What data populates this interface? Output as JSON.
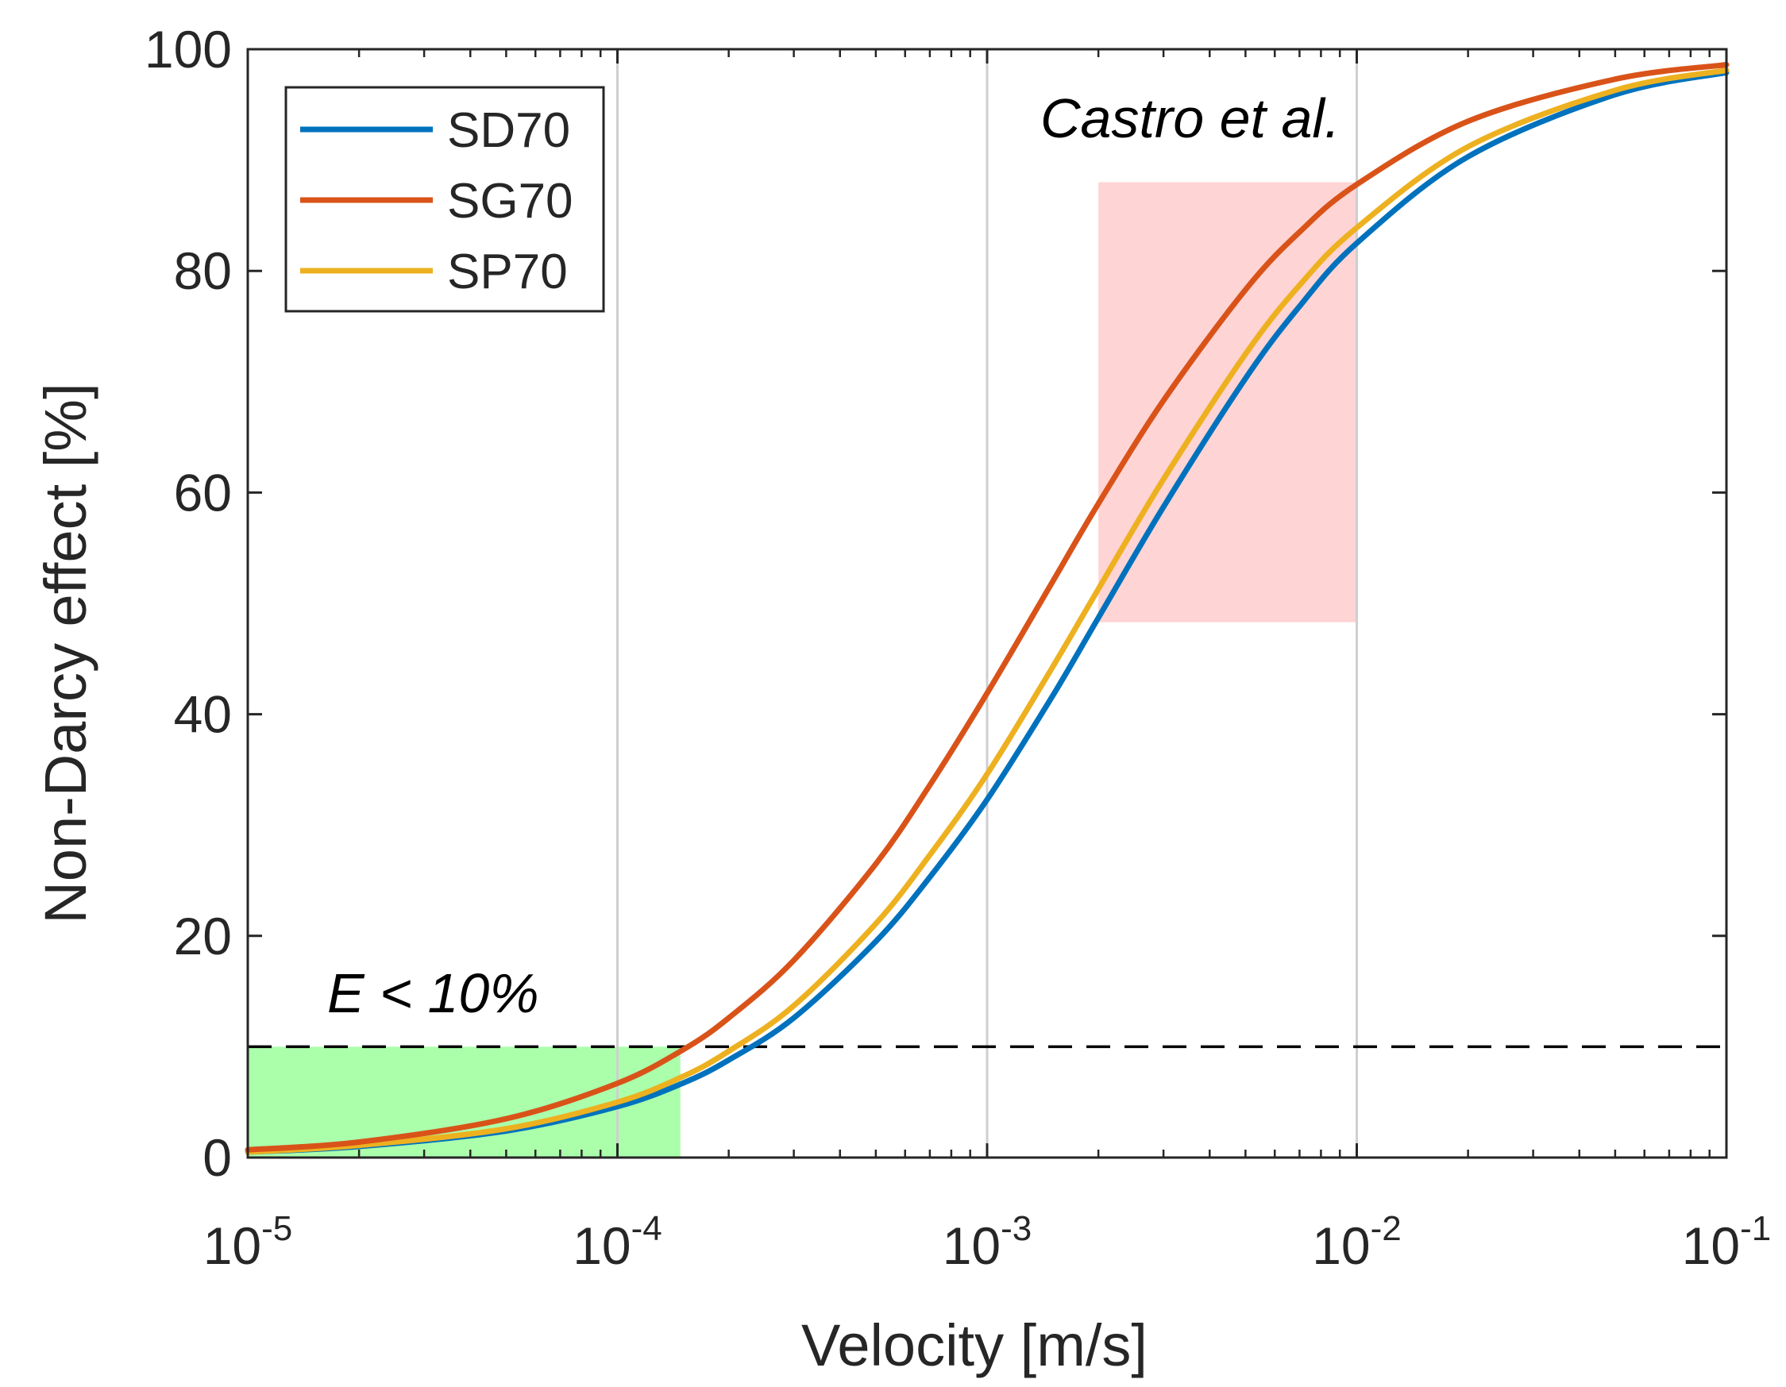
{
  "chart_data": {
    "type": "line",
    "xscale": "log",
    "xlim": [
      1e-05,
      0.1
    ],
    "ylim": [
      0,
      100
    ],
    "xlabel": "Velocity [m/s]",
    "ylabel": "Non-Darcy effect [%]",
    "xticks": [
      {
        "value": 1e-05,
        "base": "10",
        "exp": "-5"
      },
      {
        "value": 0.0001,
        "base": "10",
        "exp": "-4"
      },
      {
        "value": 0.001,
        "base": "10",
        "exp": "-3"
      },
      {
        "value": 0.01,
        "base": "10",
        "exp": "-2"
      },
      {
        "value": 0.1,
        "base": "10",
        "exp": "-1"
      }
    ],
    "yticks": [
      0,
      20,
      40,
      60,
      80,
      100
    ],
    "grid": "vertical major lines",
    "legend_position": "top-left",
    "x": [
      1e-05,
      2e-05,
      5e-05,
      0.0001,
      0.00015,
      0.0002,
      0.0003,
      0.0005,
      0.0007,
      0.001,
      0.0015,
      0.002,
      0.003,
      0.005,
      0.007,
      0.01,
      0.02,
      0.05,
      0.1
    ],
    "series": [
      {
        "name": "SD70",
        "color": "#0072BD",
        "values": [
          0.5,
          1.0,
          2.4,
          4.6,
          6.7,
          8.8,
          12.6,
          19.5,
          25.3,
          32.3,
          41.6,
          48.7,
          58.7,
          70.3,
          76.8,
          82.5,
          90.3,
          95.9,
          97.9
        ]
      },
      {
        "name": "SG70",
        "color": "#D95319",
        "values": [
          0.7,
          1.4,
          3.5,
          6.7,
          9.7,
          12.6,
          17.8,
          26.5,
          33.6,
          41.9,
          51.9,
          59.0,
          68.3,
          78.3,
          83.5,
          87.8,
          93.5,
          97.3,
          98.6
        ]
      },
      {
        "name": "SP70",
        "color": "#EDB120",
        "values": [
          0.5,
          1.1,
          2.6,
          5.0,
          7.3,
          9.6,
          13.7,
          21.1,
          27.3,
          34.6,
          44.2,
          51.3,
          61.2,
          72.5,
          78.7,
          83.9,
          91.2,
          96.3,
          98.1
        ]
      }
    ],
    "threshold_line": {
      "y": 10,
      "style": "dashed"
    },
    "regions": [
      {
        "name": "E < 10% region",
        "color": "#ABFFAB",
        "x": [
          1e-05,
          0.000148
        ],
        "y": [
          0,
          10
        ]
      },
      {
        "name": "Castro et al. region",
        "color": "#FFD4D4",
        "x": [
          0.002,
          0.01
        ],
        "y": [
          48.3,
          88
        ]
      }
    ],
    "annotations": {
      "castro": "Castro et al.",
      "threshold_prefix": "E",
      "threshold_rest": " < 10%"
    }
  }
}
